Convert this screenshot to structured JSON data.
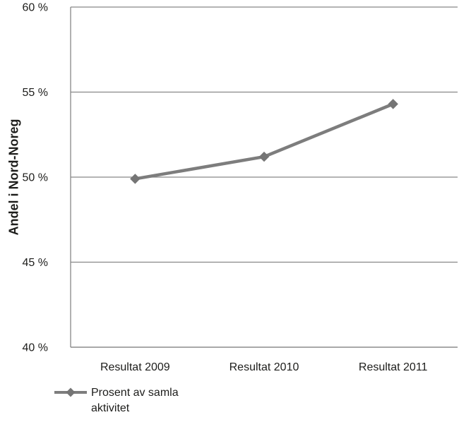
{
  "chart_data": {
    "type": "line",
    "title": "",
    "categories": [
      "Resultat 2009",
      "Resultat 2010",
      "Resultat 2011"
    ],
    "series": [
      {
        "name": "Prosent av samla aktivitet",
        "values": [
          49.9,
          51.2,
          54.3
        ]
      }
    ],
    "xlabel": "",
    "ylabel": "Andel i Nord-Noreg",
    "ylim": [
      40,
      60
    ],
    "yticks": [
      40,
      45,
      50,
      55,
      60
    ],
    "ytick_suffix": " %",
    "grid": true,
    "legend_position": "bottom-left",
    "marker": "diamond",
    "colors": {
      "line": "#7d7d7d",
      "marker": "#757575",
      "grid": "#878787",
      "axis": "#878787",
      "text": "#1d1d1b"
    }
  }
}
